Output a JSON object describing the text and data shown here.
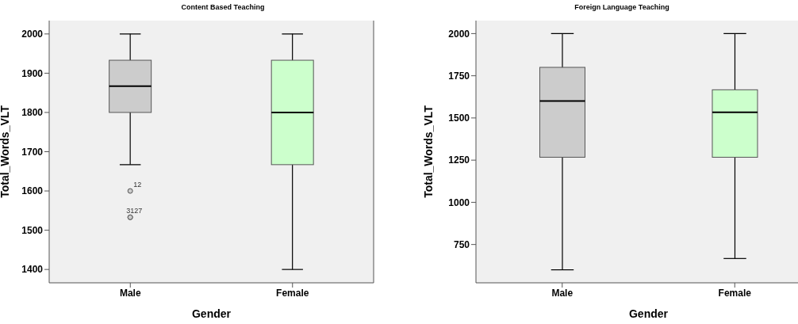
{
  "chart_data": [
    {
      "type": "box",
      "title": "Content Based Teaching",
      "xlabel": "Gender",
      "ylabel": "Total_Words_VLT",
      "categories": [
        "Male",
        "Female"
      ],
      "colors": [
        "#cccccc",
        "#ccffcc"
      ],
      "boxes": [
        {
          "low": 1667,
          "q1": 1800,
          "median": 1867,
          "q3": 1933,
          "high": 2000,
          "outliers": [
            1600,
            1533,
            1533
          ]
        },
        {
          "low": 1400,
          "q1": 1667,
          "median": 1800,
          "q3": 1933,
          "high": 2000
        }
      ],
      "ylim": [
        1366,
        2034
      ],
      "yticks": [
        1400,
        1500,
        1600,
        1700,
        1800,
        1900,
        2000
      ],
      "annotations": [
        "12",
        "31",
        "27"
      ]
    },
    {
      "type": "box",
      "title": "Foreign Language Teaching",
      "xlabel": "Gender",
      "ylabel": "Total_Words_VLT",
      "categories": [
        "Male",
        "Female"
      ],
      "colors": [
        "#cccccc",
        "#ccffcc"
      ],
      "boxes": [
        {
          "low": 600,
          "q1": 1267,
          "median": 1600,
          "q3": 1800,
          "high": 2000
        },
        {
          "low": 667,
          "q1": 1267,
          "median": 1533,
          "q3": 1667,
          "high": 2000
        }
      ],
      "ylim": [
        523,
        2077
      ],
      "yticks": [
        750,
        1000,
        1250,
        1500,
        1750,
        2000
      ]
    }
  ]
}
